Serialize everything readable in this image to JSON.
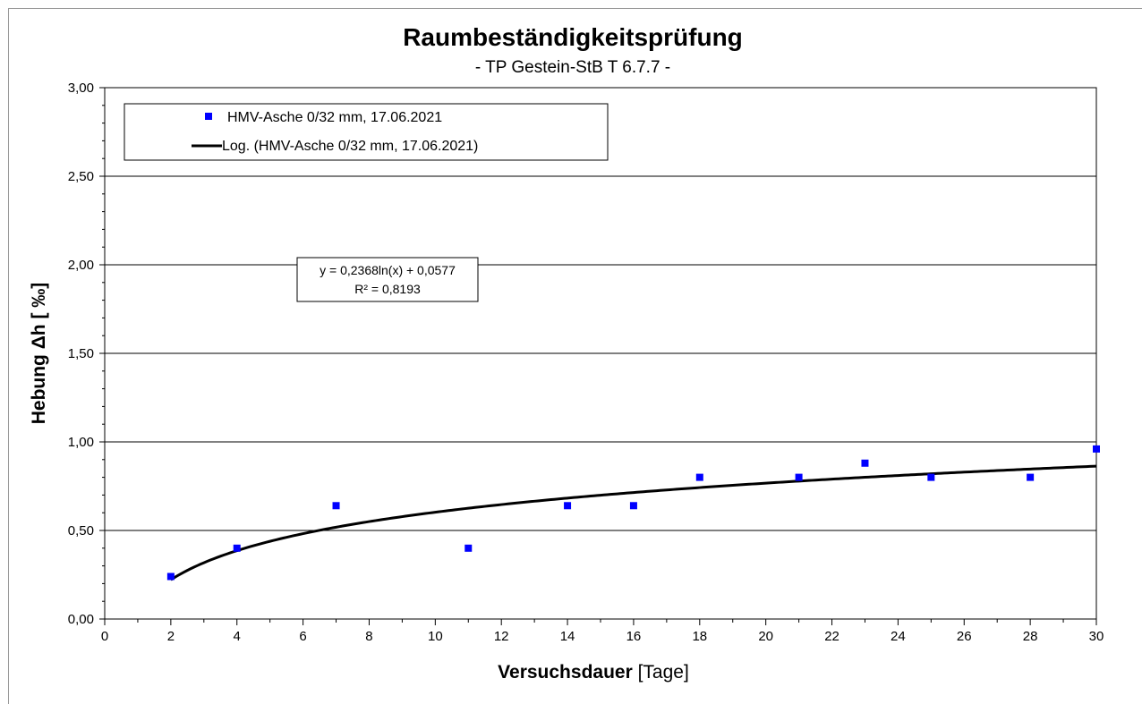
{
  "chart_data": {
    "type": "scatter",
    "title": "Raumbeständigkeitsprüfung",
    "subtitle": "- TP Gestein-StB T 6.7.7 -",
    "xlabel": {
      "bold": "Versuchsdauer",
      "normal": " [Tage]"
    },
    "ylabel": "Hebung Δh [ ‰]",
    "xlim": [
      0,
      30
    ],
    "ylim": [
      0,
      3
    ],
    "x_ticks": [
      "0",
      "2",
      "4",
      "6",
      "8",
      "10",
      "12",
      "14",
      "16",
      "18",
      "20",
      "22",
      "24",
      "26",
      "28",
      "30"
    ],
    "y_ticks": [
      "0,00",
      "0,50",
      "1,00",
      "1,50",
      "2,00",
      "2,50",
      "3,00"
    ],
    "grid": "horizontal",
    "legend_position": "top-left",
    "series": [
      {
        "name": "HMV-Asche 0/32 mm, 17.06.2021",
        "kind": "points",
        "color": "#0000ff",
        "x": [
          2,
          4,
          7,
          11,
          14,
          16,
          18,
          21,
          23,
          25,
          28,
          30
        ],
        "y": [
          0.24,
          0.4,
          0.64,
          0.4,
          0.64,
          0.64,
          0.8,
          0.8,
          0.88,
          0.8,
          0.8,
          0.96
        ]
      },
      {
        "name": "Log. (HMV-Asche 0/32 mm, 17.06.2021)",
        "kind": "trendline",
        "color": "#000000",
        "model": "logarithmic",
        "a": 0.2368,
        "b": 0.0577,
        "x_range": [
          2,
          30
        ]
      }
    ],
    "annotation": {
      "line1": "y = 0,2368ln(x) + 0,0577",
      "line2": "R² = 0,8193"
    }
  }
}
